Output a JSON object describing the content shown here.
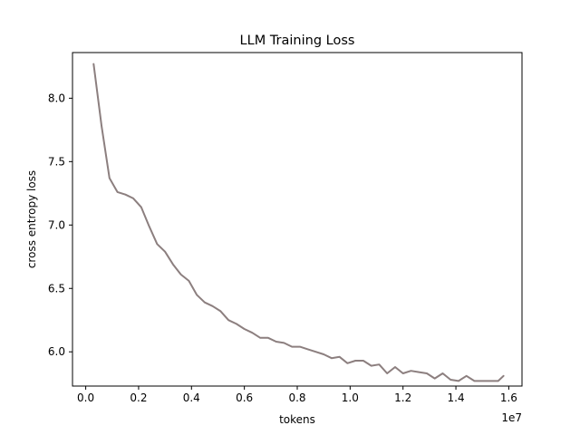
{
  "chart_data": {
    "type": "line",
    "title": "LLM Training Loss",
    "xlabel": "tokens",
    "ylabel": "cross entropy loss",
    "x_offset_label": "1e7",
    "xlim": [
      -0.05,
      1.65
    ],
    "ylim": [
      5.73,
      8.36
    ],
    "x_scale_exponent": 7,
    "xticks": [
      0.0,
      0.2,
      0.4,
      0.6,
      0.8,
      1.0,
      1.2,
      1.4,
      1.6
    ],
    "xtick_labels": [
      "0.0",
      "0.2",
      "0.4",
      "0.6",
      "0.8",
      "1.0",
      "1.2",
      "1.4",
      "1.6"
    ],
    "yticks": [
      6.0,
      6.5,
      7.0,
      7.5,
      8.0
    ],
    "ytick_labels": [
      "6.0",
      "6.5",
      "7.0",
      "7.5",
      "8.0"
    ],
    "grid": false,
    "legend": "none",
    "colors": {
      "line": "#8c7f7f",
      "axes": "#000000",
      "background": "#ffffff"
    },
    "series": [
      {
        "x": [
          0.03,
          0.06,
          0.09,
          0.12,
          0.15,
          0.18,
          0.21,
          0.24,
          0.27,
          0.3,
          0.33,
          0.36,
          0.39,
          0.42,
          0.45,
          0.48,
          0.51,
          0.54,
          0.57,
          0.6,
          0.63,
          0.66,
          0.69,
          0.72,
          0.75,
          0.78,
          0.81,
          0.84,
          0.87,
          0.9,
          0.93,
          0.96,
          0.99,
          1.02,
          1.05,
          1.08,
          1.11,
          1.14,
          1.17,
          1.2,
          1.23,
          1.26,
          1.29,
          1.32,
          1.35,
          1.38,
          1.41,
          1.44,
          1.47,
          1.5,
          1.53,
          1.56,
          1.58
        ],
        "values": [
          8.27,
          7.78,
          7.37,
          7.26,
          7.24,
          7.21,
          7.14,
          6.99,
          6.85,
          6.79,
          6.69,
          6.61,
          6.56,
          6.45,
          6.39,
          6.36,
          6.32,
          6.25,
          6.22,
          6.18,
          6.15,
          6.11,
          6.11,
          6.08,
          6.07,
          6.04,
          6.04,
          6.02,
          6.0,
          5.98,
          5.95,
          5.96,
          5.91,
          5.93,
          5.93,
          5.89,
          5.9,
          5.83,
          5.88,
          5.83,
          5.85,
          5.84,
          5.83,
          5.79,
          5.83,
          5.78,
          5.77,
          5.81,
          5.77,
          5.77,
          5.77,
          5.77,
          5.81
        ]
      }
    ]
  }
}
